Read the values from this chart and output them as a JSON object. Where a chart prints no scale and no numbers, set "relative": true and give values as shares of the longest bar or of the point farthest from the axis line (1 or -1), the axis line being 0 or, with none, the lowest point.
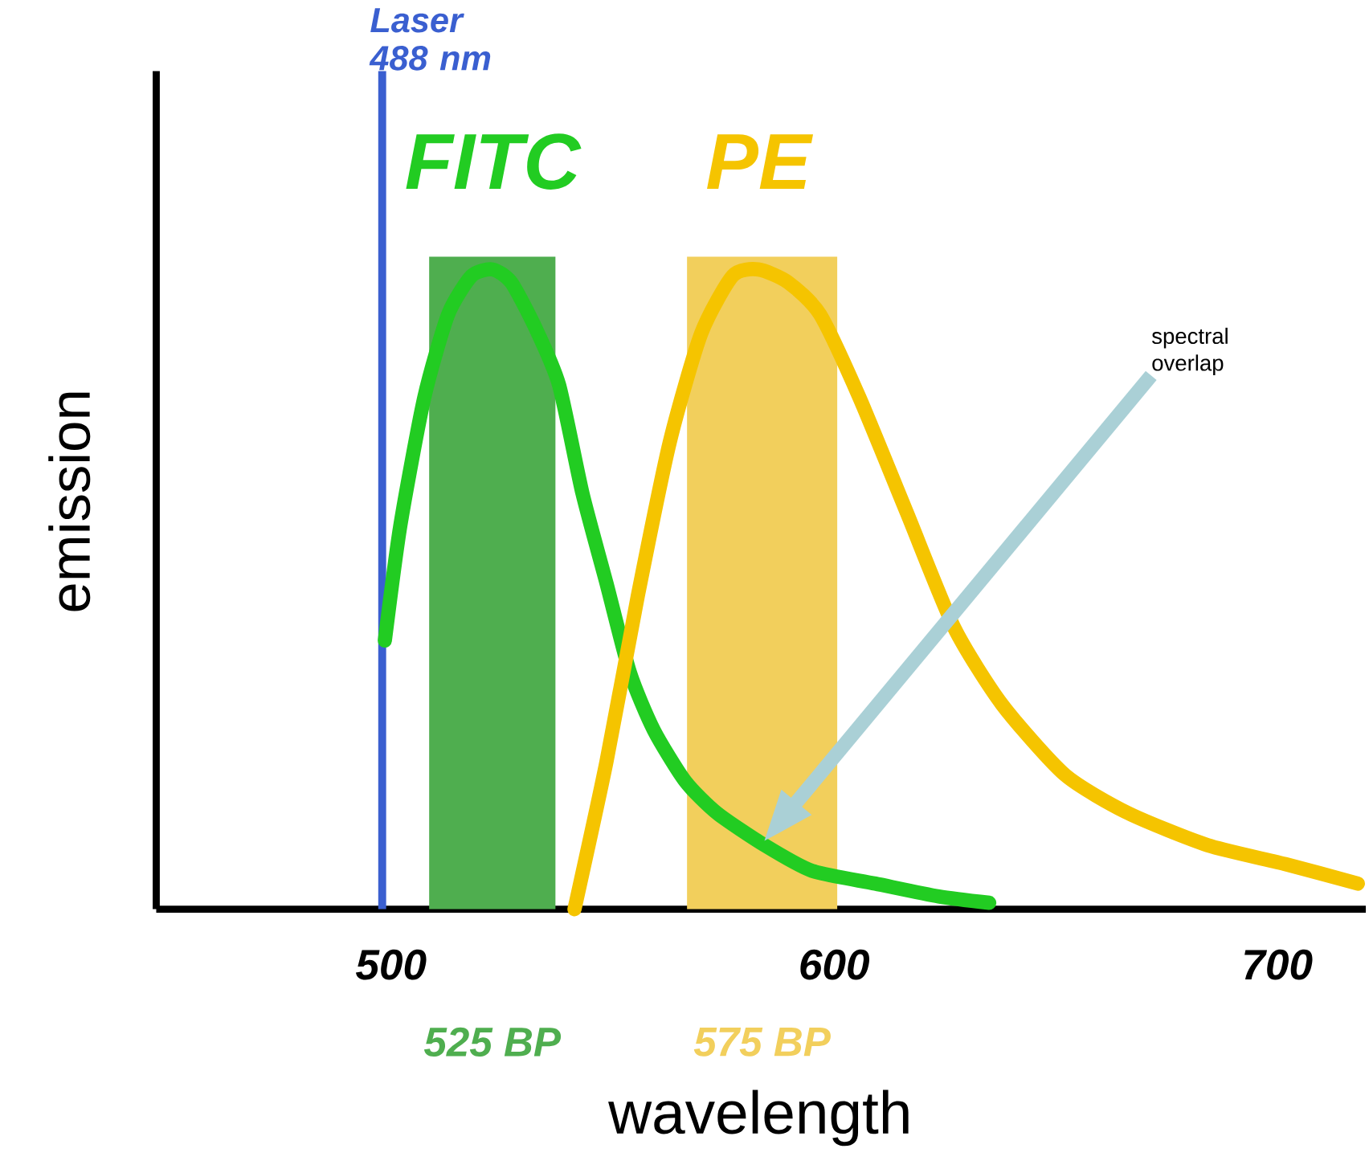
{
  "chart_data": {
    "type": "line",
    "relative": true,
    "xlabel": "wavelength",
    "ylabel": "emission",
    "xlim": [
      447,
      720
    ],
    "xticks": [
      500,
      600,
      700
    ],
    "series": [
      {
        "name": "FITC",
        "color": "#22cc22",
        "x": [
          498.6,
          502.1,
          507.5,
          512.9,
          518.2,
          522.9,
          527.1,
          532.5,
          537.9,
          543.2,
          548.6,
          553.9,
          559.3,
          566.4,
          573.6,
          584.3,
          595.0,
          609.3,
          623.6,
          635.0
        ],
        "values": [
          0.42,
          0.6,
          0.8,
          0.93,
          0.99,
          1.0,
          0.98,
          0.91,
          0.82,
          0.65,
          0.51,
          0.37,
          0.28,
          0.2,
          0.15,
          0.1,
          0.06,
          0.04,
          0.02,
          0.01
        ]
      },
      {
        "name": "PE",
        "color": "#f5c400",
        "x": [
          541.4,
          548.6,
          555.7,
          562.9,
          570.0,
          577.1,
          582.9,
          589.6,
          596.8,
          605.7,
          616.4,
          627.1,
          637.9,
          652.1,
          666.4,
          684.3,
          702.1,
          718.2
        ],
        "values": [
          0,
          0.23,
          0.49,
          0.73,
          0.9,
          0.99,
          1.0,
          0.98,
          0.93,
          0.8,
          0.62,
          0.44,
          0.32,
          0.21,
          0.15,
          0.1,
          0.07,
          0.04
        ]
      }
    ],
    "ref_lines": [
      {
        "axis": "x",
        "value": 498,
        "label": "Laser 488 nm",
        "color": "#3a5fd0"
      }
    ],
    "bands": [
      {
        "axis": "x",
        "from": 508.6,
        "to": 537.1,
        "label": "525 BP",
        "color": "#4fae4f"
      },
      {
        "axis": "x",
        "from": 566.8,
        "to": 600.7,
        "label": "575 BP",
        "color": "#f2cf5c"
      }
    ],
    "annotations": [
      "spectral overlap"
    ]
  }
}
